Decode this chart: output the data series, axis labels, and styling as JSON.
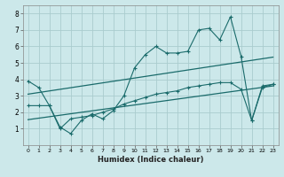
{
  "xlabel": "Humidex (Indice chaleur)",
  "bg_color": "#cce8ea",
  "grid_color": "#aaccce",
  "line_color": "#1a6b6b",
  "xlim": [
    -0.5,
    23.5
  ],
  "ylim": [
    0,
    8.5
  ],
  "xticks": [
    0,
    1,
    2,
    3,
    4,
    5,
    6,
    7,
    8,
    9,
    10,
    11,
    12,
    13,
    14,
    15,
    16,
    17,
    18,
    19,
    20,
    21,
    22,
    23
  ],
  "yticks": [
    1,
    2,
    3,
    4,
    5,
    6,
    7,
    8
  ],
  "series1_x": [
    0,
    1,
    2,
    3,
    4,
    5,
    6,
    7,
    8,
    9,
    10,
    11,
    12,
    13,
    14,
    15,
    16,
    17,
    18,
    19,
    20,
    21,
    22,
    23
  ],
  "series1_y": [
    3.9,
    3.5,
    2.4,
    1.1,
    0.7,
    1.5,
    1.9,
    1.6,
    2.1,
    3.0,
    4.7,
    5.5,
    6.0,
    5.6,
    5.6,
    5.7,
    7.0,
    7.1,
    6.4,
    7.8,
    5.4,
    1.5,
    3.6,
    3.7
  ],
  "series2_x": [
    0,
    1,
    2,
    3,
    4,
    5,
    6,
    7,
    8,
    9,
    10,
    11,
    12,
    13,
    14,
    15,
    16,
    17,
    18,
    19,
    20,
    21,
    22,
    23
  ],
  "series2_y": [
    2.4,
    2.4,
    2.4,
    1.0,
    1.6,
    1.7,
    1.8,
    2.0,
    2.2,
    2.5,
    2.7,
    2.9,
    3.1,
    3.2,
    3.3,
    3.5,
    3.6,
    3.7,
    3.8,
    3.8,
    3.4,
    1.5,
    3.5,
    3.7
  ],
  "trend1_x": [
    0,
    23
  ],
  "trend1_y": [
    3.1,
    5.35
  ],
  "trend2_x": [
    0,
    23
  ],
  "trend2_y": [
    1.55,
    3.6
  ]
}
